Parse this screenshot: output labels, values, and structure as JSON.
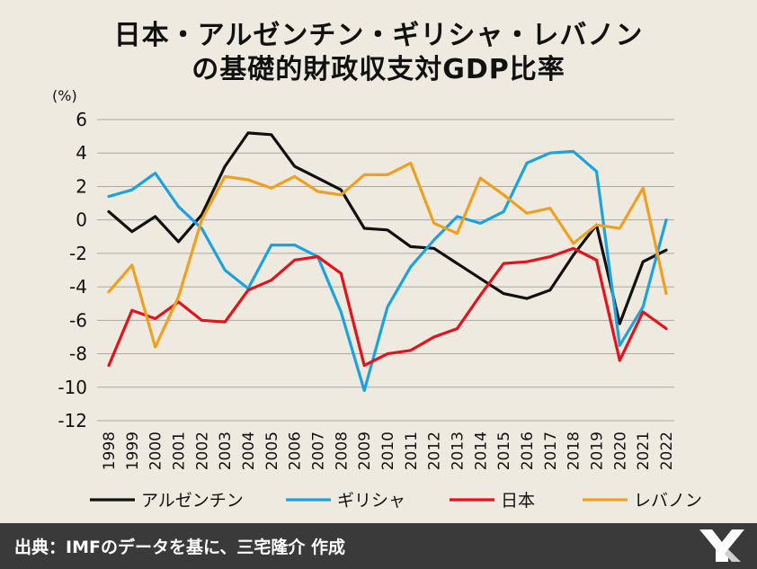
{
  "title_line1": "日本・アルゼンチン・ギリシャ・レバノン",
  "title_line2": "の基礎的財政収支対GDP比率",
  "footer": "出典：IMFのデータを基に、三宅隆介 作成",
  "chart_data": {
    "type": "line",
    "ylabel": "(%)",
    "ylim": [
      -12,
      6
    ],
    "yticks": [
      "6",
      "4",
      "2",
      "0",
      "-2",
      "-4",
      "-6",
      "-8",
      "-10",
      "-12"
    ],
    "grid": true,
    "legend_position": "bottom",
    "categories": [
      "1998",
      "1999",
      "2000",
      "2001",
      "2002",
      "2003",
      "2004",
      "2005",
      "2006",
      "2007",
      "2008",
      "2009",
      "2010",
      "2011",
      "2012",
      "2013",
      "2014",
      "2015",
      "2016",
      "2017",
      "2018",
      "2019",
      "2020",
      "2021",
      "2022"
    ],
    "series": [
      {
        "name": "アルゼンチン",
        "color": "#111111",
        "values": [
          0.5,
          -0.7,
          0.2,
          -1.3,
          0.3,
          3.2,
          5.2,
          5.1,
          3.2,
          2.5,
          1.8,
          -0.5,
          -0.6,
          -1.6,
          -1.7,
          -2.6,
          -3.5,
          -4.4,
          -4.7,
          -4.2,
          -2.1,
          -0.3,
          -6.2,
          -2.5,
          -1.8
        ]
      },
      {
        "name": "ギリシャ",
        "color": "#1aa3e0",
        "values": [
          1.4,
          1.8,
          2.8,
          0.8,
          -0.5,
          -3.0,
          -4.1,
          -1.5,
          -1.5,
          -2.2,
          -5.5,
          -10.2,
          -5.2,
          -2.8,
          -1.2,
          0.2,
          -0.2,
          0.5,
          3.4,
          4.0,
          4.1,
          2.9,
          -7.5,
          -5.2,
          0.0
        ]
      },
      {
        "name": "日本",
        "color": "#e3121b",
        "values": [
          -8.7,
          -5.4,
          -5.9,
          -4.9,
          -6.0,
          -6.1,
          -4.2,
          -3.6,
          -2.4,
          -2.2,
          -3.2,
          -8.7,
          -8.0,
          -7.8,
          -7.0,
          -6.5,
          -4.5,
          -2.6,
          -2.5,
          -2.2,
          -1.7,
          -2.4,
          -8.4,
          -5.5,
          -6.5
        ]
      },
      {
        "name": "レバノン",
        "color": "#f0a020",
        "values": [
          -4.3,
          -2.7,
          -7.6,
          -4.6,
          0.0,
          2.6,
          2.4,
          1.9,
          2.6,
          1.7,
          1.5,
          2.7,
          2.7,
          3.4,
          -0.2,
          -0.8,
          2.5,
          1.5,
          0.4,
          0.7,
          -1.4,
          -0.3,
          -0.5,
          1.9,
          -4.4
        ]
      }
    ]
  }
}
